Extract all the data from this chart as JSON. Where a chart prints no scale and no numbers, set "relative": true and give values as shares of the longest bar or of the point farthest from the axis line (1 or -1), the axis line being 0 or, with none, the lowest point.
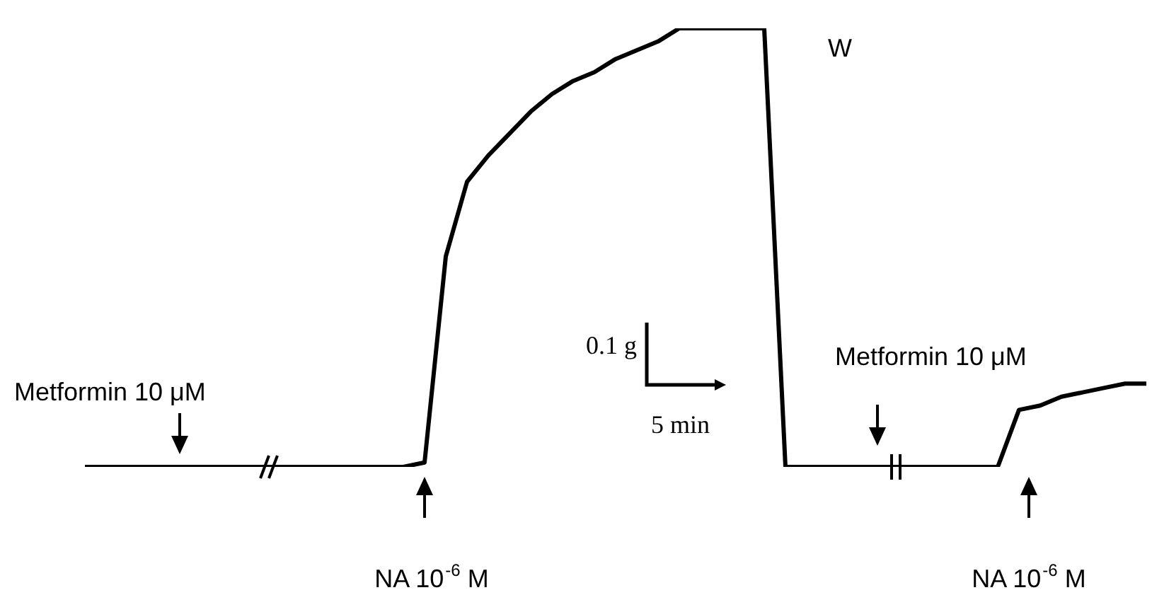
{
  "chart_data": {
    "type": "line",
    "relative": true,
    "color": "#000000",
    "marker": "none",
    "line_style": "solid",
    "legend": false,
    "grid": false,
    "categories": [
      null,
      null,
      null,
      null,
      null,
      null,
      null,
      null,
      null,
      null,
      null,
      null,
      null,
      null,
      null,
      null,
      null,
      null,
      null,
      null,
      null,
      null,
      null,
      null,
      null,
      null,
      null,
      null,
      null,
      null,
      null,
      null,
      null,
      null,
      null,
      null,
      null,
      null,
      null,
      null,
      null,
      null,
      null,
      null,
      null,
      null,
      null,
      null,
      null,
      null,
      null
    ],
    "values": [
      0,
      0,
      0,
      0,
      0,
      0,
      0,
      0,
      0,
      0,
      0,
      0,
      0,
      0,
      0,
      0,
      0.01,
      0.48,
      0.65,
      0.71,
      0.76,
      0.81,
      0.85,
      0.88,
      0.9,
      0.93,
      0.95,
      0.97,
      1,
      1,
      1,
      1,
      1,
      0,
      0,
      0,
      0,
      0,
      0,
      0,
      0,
      0,
      0,
      0,
      0.13,
      0.14,
      0.16,
      0.17,
      0.18,
      0.19,
      0.19
    ],
    "annotations": [
      "Metformin 10 μM",
      "NA 10$^{-6}$ M",
      "W",
      "0.1 g",
      "5 min",
      "Metformin 10 μM",
      "NA 10$^{-6}$ M"
    ]
  }
}
